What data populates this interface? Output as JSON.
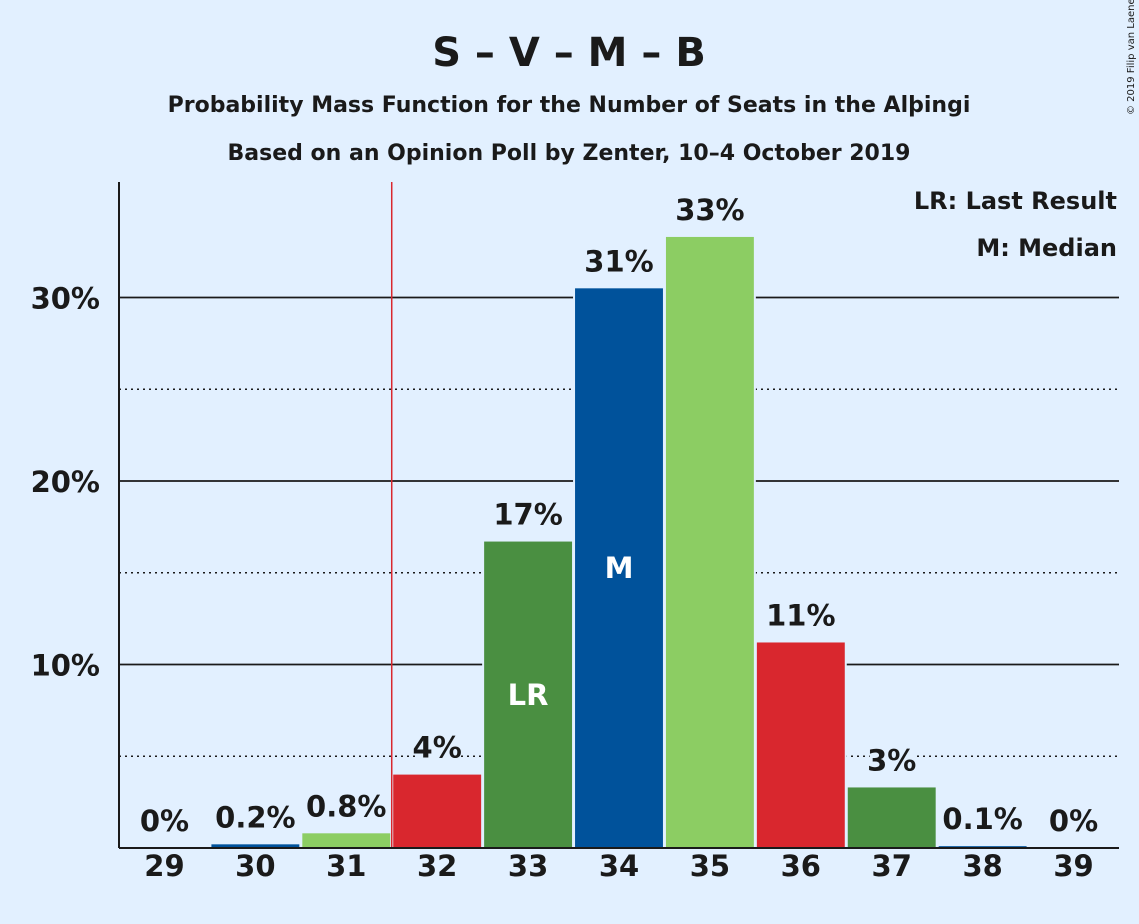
{
  "copyright": "© 2019 Filip van Laenen",
  "colors": {
    "background": "#e2f0ff",
    "last_result_line": "#d9272e",
    "axis": "#1a1a1a"
  },
  "chart_data": {
    "type": "bar",
    "title": "S – V – M – B",
    "subtitle": "Probability Mass Function for the Number of Seats in the Alþingi",
    "subtitle2": "Based on an Opinion Poll by Zenter, 10–4 October 2019",
    "xlabel": "",
    "ylabel": "",
    "categories": [
      "29",
      "30",
      "31",
      "32",
      "33",
      "34",
      "35",
      "36",
      "37",
      "38",
      "39"
    ],
    "values": [
      0,
      0.2,
      0.8,
      4,
      16.7,
      30.5,
      33.3,
      11.2,
      3.3,
      0.1,
      0
    ],
    "labels": [
      "0%",
      "0.2%",
      "0.8%",
      "4%",
      "17%",
      "31%",
      "33%",
      "11%",
      "3%",
      "0.1%",
      "0%"
    ],
    "bar_colors": [
      "#d9272e",
      "#00529b",
      "#8ccd63",
      "#d9272e",
      "#4a8f41",
      "#00529b",
      "#8ccd63",
      "#d9272e",
      "#4a8f41",
      "#00529b",
      "#8ccd63"
    ],
    "ylim": [
      0,
      36
    ],
    "yticks": [
      10,
      20,
      30
    ],
    "ytick_labels": [
      "10%",
      "20%",
      "30%"
    ],
    "minor_gridlines": [
      5,
      15,
      25
    ],
    "grid": true,
    "last_result": {
      "category": "32",
      "bar_label": "LR",
      "bar_category": "33"
    },
    "median": {
      "category": "34",
      "bar_label": "M"
    },
    "legend": {
      "placement": "top-right",
      "items": [
        "LR: Last Result",
        "M: Median"
      ]
    }
  }
}
